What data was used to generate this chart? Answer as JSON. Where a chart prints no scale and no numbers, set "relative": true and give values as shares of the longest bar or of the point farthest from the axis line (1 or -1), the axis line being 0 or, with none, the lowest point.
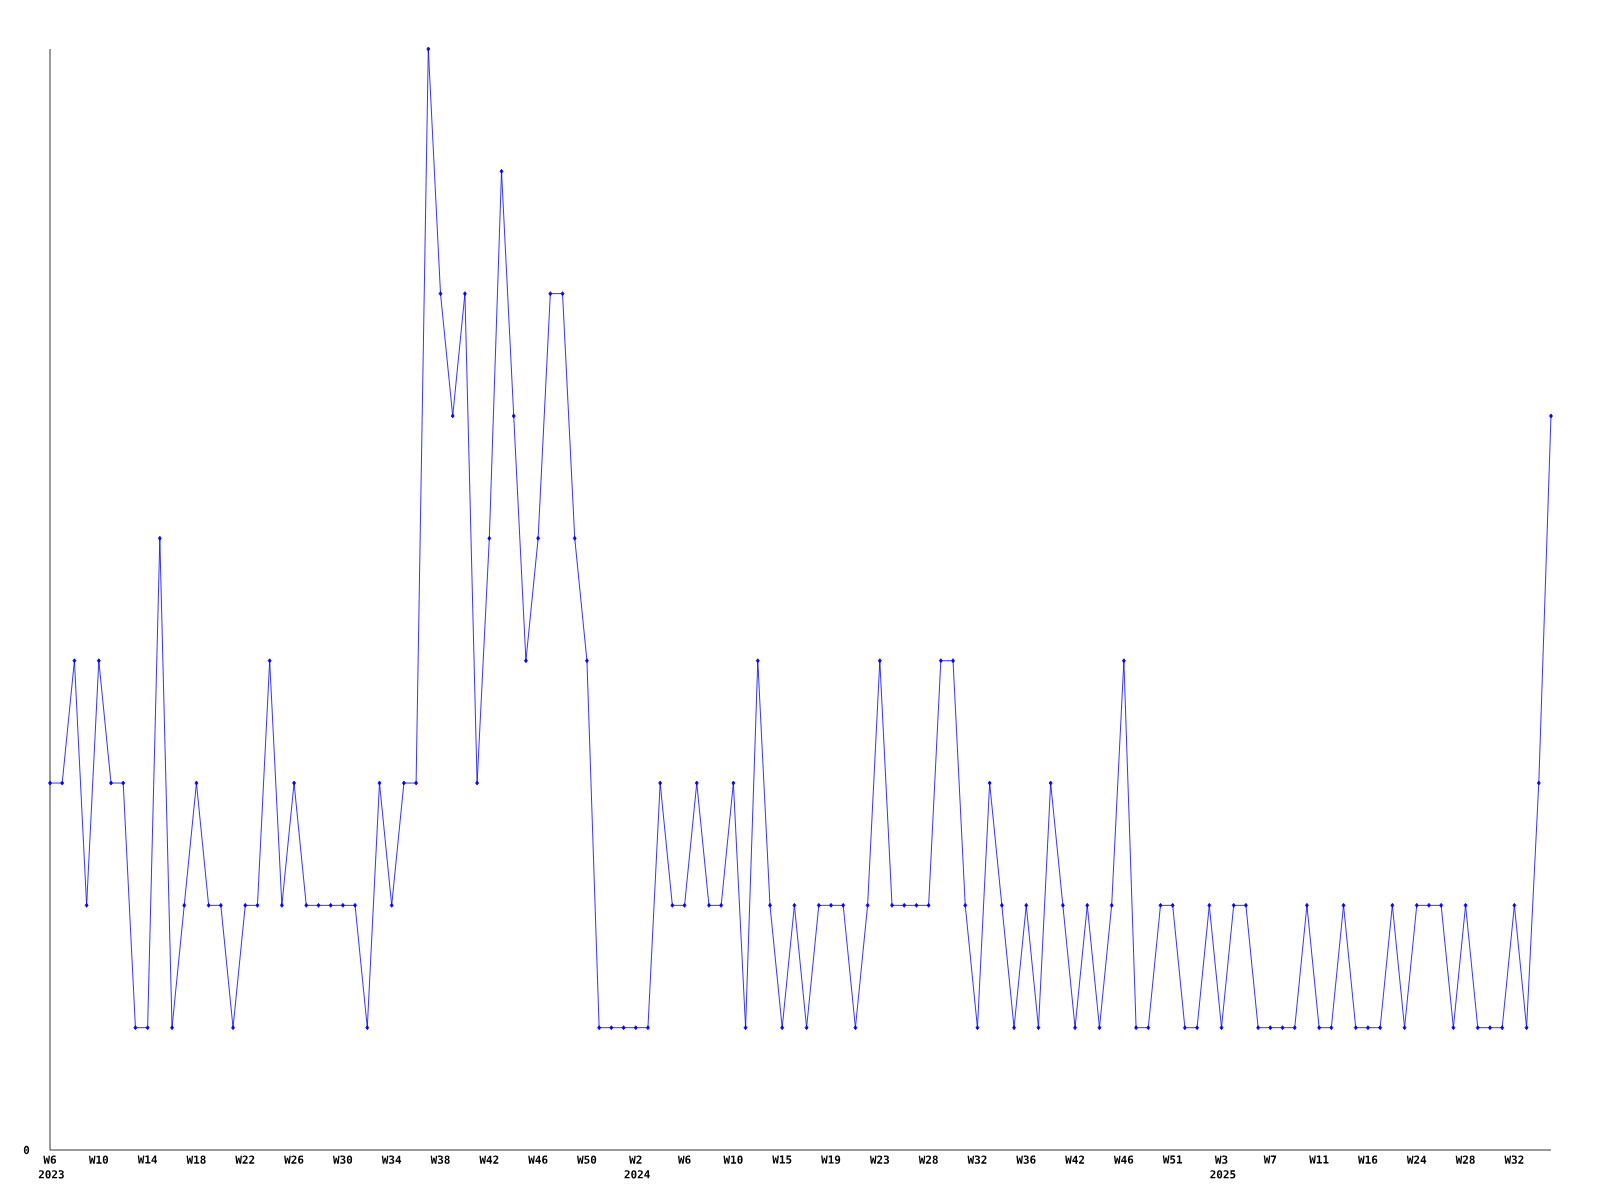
{
  "chart_data": {
    "type": "line",
    "relative": true,
    "color": "#0000ff",
    "marker": "diamond",
    "line_style": "solid",
    "categories": [
      "W6",
      null,
      null,
      null,
      "W10",
      null,
      null,
      null,
      "W14",
      null,
      null,
      null,
      "W18",
      null,
      null,
      null,
      "W22",
      null,
      null,
      null,
      "W26",
      null,
      null,
      null,
      "W30",
      null,
      null,
      null,
      "W34",
      null,
      null,
      null,
      "W38",
      null,
      null,
      null,
      "W42",
      null,
      null,
      null,
      "W46",
      null,
      null,
      null,
      "W50",
      null,
      null,
      null,
      "W2",
      null,
      null,
      null,
      "W6",
      null,
      null,
      null,
      "W10",
      null,
      null,
      null,
      "W15",
      null,
      null,
      null,
      "W19",
      null,
      null,
      null,
      "W23",
      null,
      null,
      null,
      "W28",
      null,
      null,
      null,
      "W32",
      null,
      null,
      null,
      "W36",
      null,
      null,
      null,
      "W42",
      null,
      null,
      null,
      "W46",
      null,
      null,
      null,
      "W51",
      null,
      null,
      null,
      "W3",
      null,
      null,
      null,
      "W7",
      null,
      null,
      null,
      "W11",
      null,
      null,
      null,
      "W16",
      null,
      null,
      null,
      "W24",
      null,
      null,
      null,
      "W28",
      null,
      null,
      null,
      "W32",
      null,
      null,
      null
    ],
    "values": [
      0.3333,
      0.3333,
      0.4444,
      0.2222,
      0.4444,
      0.3333,
      0.3333,
      0.1111,
      0.1111,
      0.5556,
      0.1111,
      0.2222,
      0.3333,
      0.2222,
      0.2222,
      0.1111,
      0.2222,
      0.2222,
      0.4444,
      0.2222,
      0.3333,
      0.2222,
      0.2222,
      0.2222,
      0.2222,
      0.2222,
      0.1111,
      0.3333,
      0.2222,
      0.3333,
      0.3333,
      1,
      0.7778,
      0.6667,
      0.7778,
      0.3333,
      0.5556,
      0.8889,
      0.6667,
      0.4444,
      0.5556,
      0.7778,
      0.7778,
      0.5556,
      0.4444,
      0.1111,
      0.1111,
      0.1111,
      0.1111,
      0.1111,
      0.3333,
      0.2222,
      0.2222,
      0.3333,
      0.2222,
      0.2222,
      0.3333,
      0.1111,
      0.4444,
      0.2222,
      0.1111,
      0.2222,
      0.1111,
      0.2222,
      0.2222,
      0.2222,
      0.1111,
      0.2222,
      0.4444,
      0.2222,
      0.2222,
      0.2222,
      0.2222,
      0.4444,
      0.4444,
      0.2222,
      0.1111,
      0.3333,
      0.2222,
      0.1111,
      0.2222,
      0.1111,
      0.3333,
      0.2222,
      0.1111,
      0.2222,
      0.1111,
      0.2222,
      0.4444,
      0.1111,
      0.1111,
      0.2222,
      0.2222,
      0.1111,
      0.1111,
      0.2222,
      0.1111,
      0.2222,
      0.2222,
      0.1111,
      0.1111,
      0.1111,
      0.1111,
      0.2222,
      0.1111,
      0.1111,
      0.2222,
      0.1111,
      0.1111,
      0.1111,
      0.2222,
      0.1111,
      0.2222,
      0.2222,
      0.2222,
      0.1111,
      0.2222,
      0.1111,
      0.1111,
      0.1111,
      0.2222,
      0.1111,
      0.3333,
      0.6667
    ],
    "annotations": [
      "0",
      "2023",
      "2024",
      "2025"
    ]
  }
}
